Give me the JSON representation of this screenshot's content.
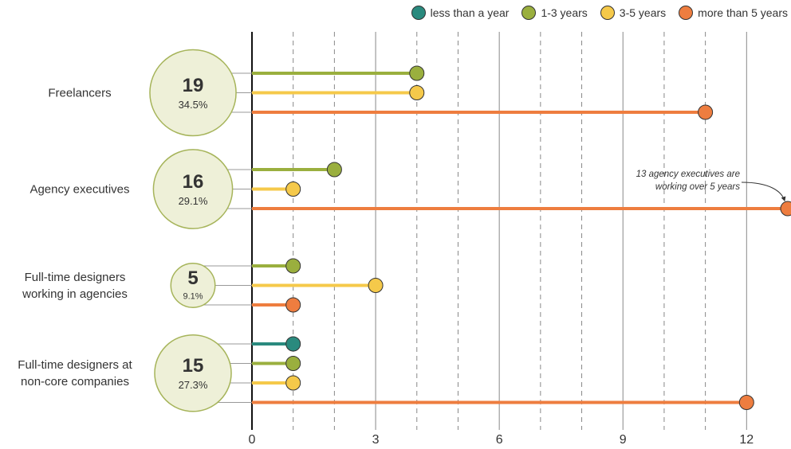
{
  "chart_data": {
    "type": "lollipop",
    "categories": [
      "Freelancers",
      "Agency executives",
      "Full-time designers working in agencies",
      "Full-time designers at non-core companies"
    ],
    "totals": [
      19,
      16,
      5,
      15
    ],
    "share_labels": [
      "34.5%",
      "29.1%",
      "9.1%",
      "27.3%"
    ],
    "series": [
      {
        "name": "less than a year",
        "color": "#2a8a7e",
        "values": [
          null,
          null,
          null,
          1
        ]
      },
      {
        "name": "1-3 years",
        "color": "#9aaf3e",
        "values": [
          4,
          2,
          1,
          1
        ]
      },
      {
        "name": "3-5 years",
        "color": "#f5c94a",
        "values": [
          4,
          1,
          3,
          1
        ]
      },
      {
        "name": "more than 5 years",
        "color": "#ee7d3f",
        "values": [
          11,
          13,
          1,
          12
        ]
      }
    ],
    "xlim": [
      0,
      13
    ],
    "xticks": [
      0,
      3,
      6,
      9,
      12
    ],
    "x_minor_ticks": [
      1,
      2,
      4,
      5,
      7,
      8,
      10,
      11
    ],
    "annotation": "13 agency executives are working over 5 years",
    "legend": "top-right"
  }
}
